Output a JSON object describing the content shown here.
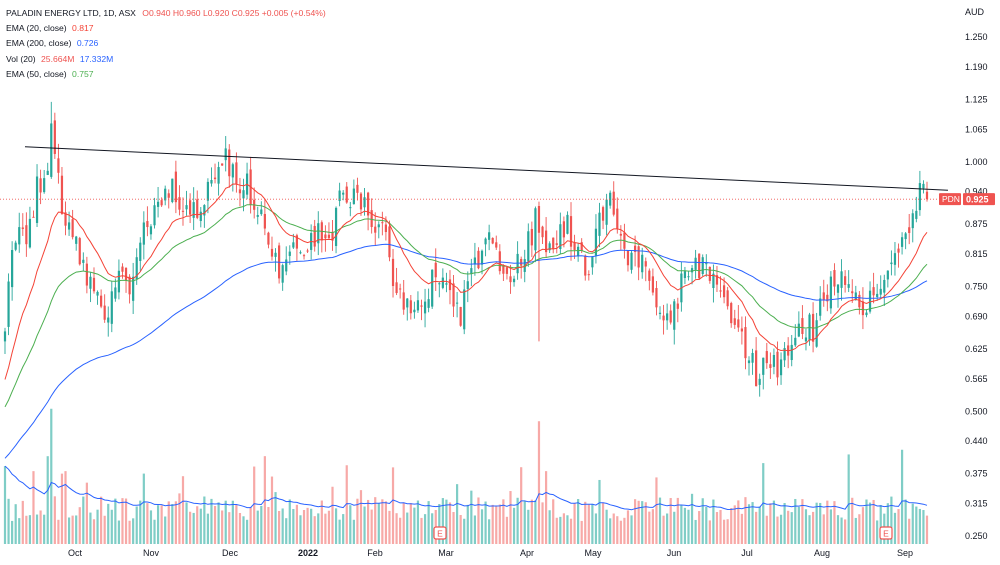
{
  "legend": {
    "main": "PALADIN ENERGY LTD, 1D, ASX",
    "ohlc": "O0.940  H0.960  L0.920  C0.925  +0.005 (+0.54%)",
    "ema20_label": "EMA (20, close)",
    "ema20_value": "0.817",
    "ema200_label": "EMA (200, close)",
    "ema200_value": "0.726",
    "vol_label": "Vol (20)",
    "vol_value1": "25.664M",
    "vol_value2": "17.332M",
    "ema50_label": "EMA (50, close)",
    "ema50_value": "0.757"
  },
  "price_axis": {
    "currency": "AUD",
    "ticks": [
      "1.250",
      "1.190",
      "1.125",
      "1.065",
      "1.000",
      "0.940",
      "0.875",
      "0.815",
      "0.750",
      "0.690",
      "0.625",
      "0.565",
      "0.500",
      "0.440",
      "0.375",
      "0.315",
      "0.250"
    ],
    "last_price_label": "0.925",
    "symbol_tag": "PDN"
  },
  "time_axis": {
    "ticks": [
      "Oct",
      "Nov",
      "Dec",
      "2022",
      "Feb",
      "Mar",
      "Apr",
      "May",
      "Jun",
      "Jul",
      "Aug",
      "Sep"
    ]
  },
  "earnings_markers": [
    "E",
    "E"
  ],
  "colors": {
    "up": "#26a69a",
    "down": "#ef5350",
    "ema20": "#f44336",
    "ema50": "#4caf50",
    "ema200": "#2962ff",
    "volume_ma": "#2962ff",
    "trendline": "#131722"
  },
  "chart_data": {
    "type": "candlestick",
    "title": "PALADIN ENERGY LTD, 1D, ASX",
    "y_range": [
      0.25,
      1.29
    ],
    "key_points": [
      {
        "date": "Sep 2021",
        "close": 0.69
      },
      {
        "date": "Sep 2021 high",
        "close": 1.12
      },
      {
        "date": "Oct 2021",
        "close": 0.72
      },
      {
        "date": "Nov 2021",
        "close": 1.01
      },
      {
        "date": "Dec 2021",
        "close": 0.78
      },
      {
        "date": "Jan 2022",
        "close": 0.96
      },
      {
        "date": "Feb 2022",
        "close": 0.69
      },
      {
        "date": "Mar 2022",
        "close": 0.84
      },
      {
        "date": "Apr 2022",
        "close": 0.95
      },
      {
        "date": "May 2022",
        "close": 0.68
      },
      {
        "date": "Jun 2022",
        "close": 0.78
      },
      {
        "date": "Jul 2022",
        "close": 0.57
      },
      {
        "date": "Aug 2022",
        "close": 0.77
      },
      {
        "date": "Sep 2022",
        "close": 0.925
      }
    ],
    "last": {
      "open": 0.94,
      "high": 0.96,
      "low": 0.92,
      "close": 0.925,
      "change": 0.005,
      "change_pct": 0.54
    },
    "ema": {
      "ema20": 0.817,
      "ema50": 0.757,
      "ema200": 0.726
    },
    "volume": {
      "last": "25.664M",
      "ma20": "17.332M"
    },
    "trendline": {
      "start_price": 1.03,
      "end_price": 0.943
    }
  }
}
